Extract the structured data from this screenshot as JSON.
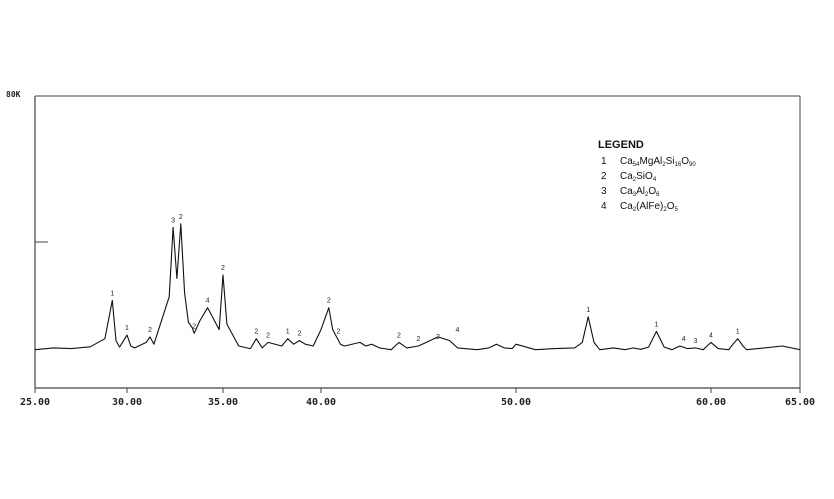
{
  "chart_data": {
    "type": "line",
    "y_max_label": "80K",
    "x_ticks": [
      "25.00",
      "30.00",
      "35.00",
      "40.00",
      "50.00",
      "60.00",
      "65.00"
    ],
    "x": [
      25.0,
      26.0,
      27.0,
      28.0,
      28.8,
      29.2,
      29.4,
      29.6,
      30.0,
      30.2,
      30.4,
      31.0,
      31.2,
      31.4,
      32.2,
      32.4,
      32.6,
      32.8,
      33.0,
      33.2,
      33.4,
      33.5,
      33.8,
      34.2,
      34.6,
      34.8,
      35.0,
      35.2,
      35.8,
      36.4,
      36.7,
      37.0,
      37.3,
      38.0,
      38.3,
      38.6,
      38.9,
      39.2,
      39.6,
      40.0,
      40.4,
      40.6,
      41.0,
      41.2,
      42.0,
      42.3,
      42.6,
      43.0,
      43.6,
      44.0,
      44.4,
      45.0,
      46.0,
      46.6,
      47.0,
      48.0,
      48.6,
      49.0,
      49.4,
      49.8,
      50.0,
      51.0,
      52.0,
      53.0,
      53.4,
      53.7,
      54.0,
      54.3,
      55.0,
      55.6,
      56.0,
      56.4,
      56.8,
      57.2,
      57.6,
      58.0,
      58.4,
      58.8,
      59.2,
      59.6,
      60.0,
      60.4,
      61.0,
      61.2,
      61.5,
      61.8,
      62.0,
      63.0,
      64.0,
      65.0
    ],
    "y": [
      10.5,
      11.0,
      10.8,
      11.3,
      13.5,
      24.0,
      13.0,
      11.2,
      14.5,
      11.5,
      11.0,
      12.5,
      14.0,
      12.0,
      25.0,
      44.0,
      30.0,
      45.0,
      26.0,
      18.0,
      16.5,
      15.0,
      18.5,
      22.0,
      18.0,
      16.0,
      31.0,
      17.5,
      11.5,
      10.8,
      13.5,
      11.0,
      12.5,
      11.5,
      13.5,
      12.0,
      13.0,
      12.0,
      11.5,
      16.0,
      22.0,
      16.0,
      12.0,
      11.5,
      12.5,
      11.5,
      12.0,
      11.0,
      10.5,
      12.5,
      11.0,
      11.5,
      14.0,
      13.0,
      11.0,
      10.5,
      11.0,
      12.0,
      11.0,
      10.8,
      12.0,
      10.5,
      10.8,
      11.0,
      12.5,
      19.5,
      12.5,
      10.5,
      11.0,
      10.5,
      11.0,
      10.6,
      11.2,
      15.5,
      11.2,
      10.5,
      11.5,
      10.8,
      11.0,
      10.5,
      12.5,
      10.8,
      10.5,
      11.8,
      13.5,
      11.5,
      10.5,
      11.0,
      11.5,
      10.5
    ],
    "ylim": [
      0,
      80
    ],
    "legend": {
      "title": "LEGEND",
      "position": "top-right",
      "entries": [
        {
          "num": "1",
          "parts": [
            [
              "Ca",
              ""
            ],
            [
              "54",
              "sub"
            ],
            [
              "MgAl",
              ""
            ],
            [
              "2",
              "sub"
            ],
            [
              "Si",
              ""
            ],
            [
              "16",
              "sub"
            ],
            [
              "O",
              ""
            ],
            [
              "90",
              "sub"
            ]
          ]
        },
        {
          "num": "2",
          "parts": [
            [
              "Ca",
              ""
            ],
            [
              "2",
              "sub"
            ],
            [
              "SiO",
              ""
            ],
            [
              "4",
              "sub"
            ]
          ]
        },
        {
          "num": "3",
          "parts": [
            [
              "Ca",
              ""
            ],
            [
              "3",
              "sub"
            ],
            [
              "Al",
              ""
            ],
            [
              "2",
              "sub"
            ],
            [
              "O",
              ""
            ],
            [
              "6",
              "sub"
            ]
          ]
        },
        {
          "num": "4",
          "parts": [
            [
              "Ca",
              ""
            ],
            [
              "2",
              "sub"
            ],
            [
              "(AlFe)",
              ""
            ],
            [
              "2",
              "sub"
            ],
            [
              "O",
              ""
            ],
            [
              "5",
              "sub"
            ]
          ]
        }
      ]
    },
    "peak_labels": [
      {
        "x": 29.2,
        "y": 24.0,
        "label": "1"
      },
      {
        "x": 30.0,
        "y": 14.5,
        "label": "1"
      },
      {
        "x": 31.2,
        "y": 14.0,
        "label": "2"
      },
      {
        "x": 32.4,
        "y": 44.0,
        "label": "3"
      },
      {
        "x": 32.8,
        "y": 45.0,
        "label": "2"
      },
      {
        "x": 33.5,
        "y": 15.0,
        "label": "2"
      },
      {
        "x": 34.2,
        "y": 22.0,
        "label": "4"
      },
      {
        "x": 35.0,
        "y": 31.0,
        "label": "2"
      },
      {
        "x": 36.7,
        "y": 13.5,
        "label": "2"
      },
      {
        "x": 37.3,
        "y": 12.5,
        "label": "2"
      },
      {
        "x": 38.3,
        "y": 13.5,
        "label": "1"
      },
      {
        "x": 38.9,
        "y": 13.0,
        "label": "2"
      },
      {
        "x": 40.4,
        "y": 22.0,
        "label": "2"
      },
      {
        "x": 40.9,
        "y": 13.5,
        "label": "2"
      },
      {
        "x": 44.0,
        "y": 12.5,
        "label": "2"
      },
      {
        "x": 45.0,
        "y": 11.5,
        "label": "2"
      },
      {
        "x": 46.0,
        "y": 12.0,
        "label": "2"
      },
      {
        "x": 47.0,
        "y": 14.0,
        "label": "4"
      },
      {
        "x": 53.7,
        "y": 19.5,
        "label": "1"
      },
      {
        "x": 57.2,
        "y": 15.5,
        "label": "1"
      },
      {
        "x": 58.6,
        "y": 11.5,
        "label": "4"
      },
      {
        "x": 59.2,
        "y": 11.0,
        "label": "3"
      },
      {
        "x": 60.0,
        "y": 12.5,
        "label": "4"
      },
      {
        "x": 61.5,
        "y": 13.5,
        "label": "1"
      }
    ]
  }
}
